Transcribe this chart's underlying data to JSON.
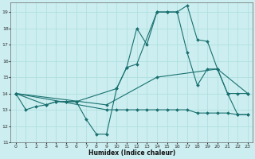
{
  "xlabel": "Humidex (Indice chaleur)",
  "bg_color": "#cceef0",
  "grid_color": "#aadddd",
  "line_color": "#1a7070",
  "xlim": [
    -0.5,
    23.5
  ],
  "ylim": [
    11,
    19.6
  ],
  "yticks": [
    11,
    12,
    13,
    14,
    15,
    16,
    17,
    18,
    19
  ],
  "xticks": [
    0,
    1,
    2,
    3,
    4,
    5,
    6,
    7,
    8,
    9,
    10,
    11,
    12,
    13,
    14,
    15,
    16,
    17,
    18,
    19,
    20,
    21,
    22,
    23
  ],
  "line1_x": [
    0,
    1,
    2,
    3,
    4,
    5,
    6,
    7,
    8,
    9,
    10,
    11,
    12,
    13,
    14,
    15,
    16,
    17,
    18,
    19,
    20,
    21,
    22,
    23
  ],
  "line1_y": [
    14.0,
    13.0,
    13.2,
    13.3,
    13.5,
    13.5,
    13.5,
    12.4,
    11.5,
    11.5,
    14.3,
    15.6,
    18.0,
    17.0,
    19.0,
    19.0,
    19.0,
    19.4,
    17.3,
    17.2,
    15.5,
    14.0,
    12.7,
    12.7
  ],
  "line2_x": [
    0,
    3,
    4,
    5,
    6,
    10,
    11,
    12,
    14,
    15,
    16,
    17,
    18,
    19,
    20,
    21,
    22,
    23
  ],
  "line2_y": [
    14.0,
    13.3,
    13.5,
    13.5,
    13.5,
    14.3,
    15.6,
    15.8,
    19.0,
    19.0,
    19.0,
    16.5,
    14.5,
    15.5,
    15.5,
    14.0,
    14.0,
    14.0
  ],
  "line3_x": [
    0,
    9,
    10,
    11,
    12,
    13,
    14,
    15,
    16,
    17,
    18,
    19,
    20,
    21,
    22,
    23
  ],
  "line3_y": [
    14.0,
    13.0,
    13.0,
    13.0,
    13.0,
    13.0,
    13.0,
    13.0,
    13.0,
    13.0,
    12.8,
    12.8,
    12.8,
    12.8,
    12.7,
    12.7
  ],
  "line4_x": [
    0,
    9,
    14,
    20,
    23
  ],
  "line4_y": [
    14.0,
    13.3,
    15.0,
    15.5,
    14.0
  ]
}
